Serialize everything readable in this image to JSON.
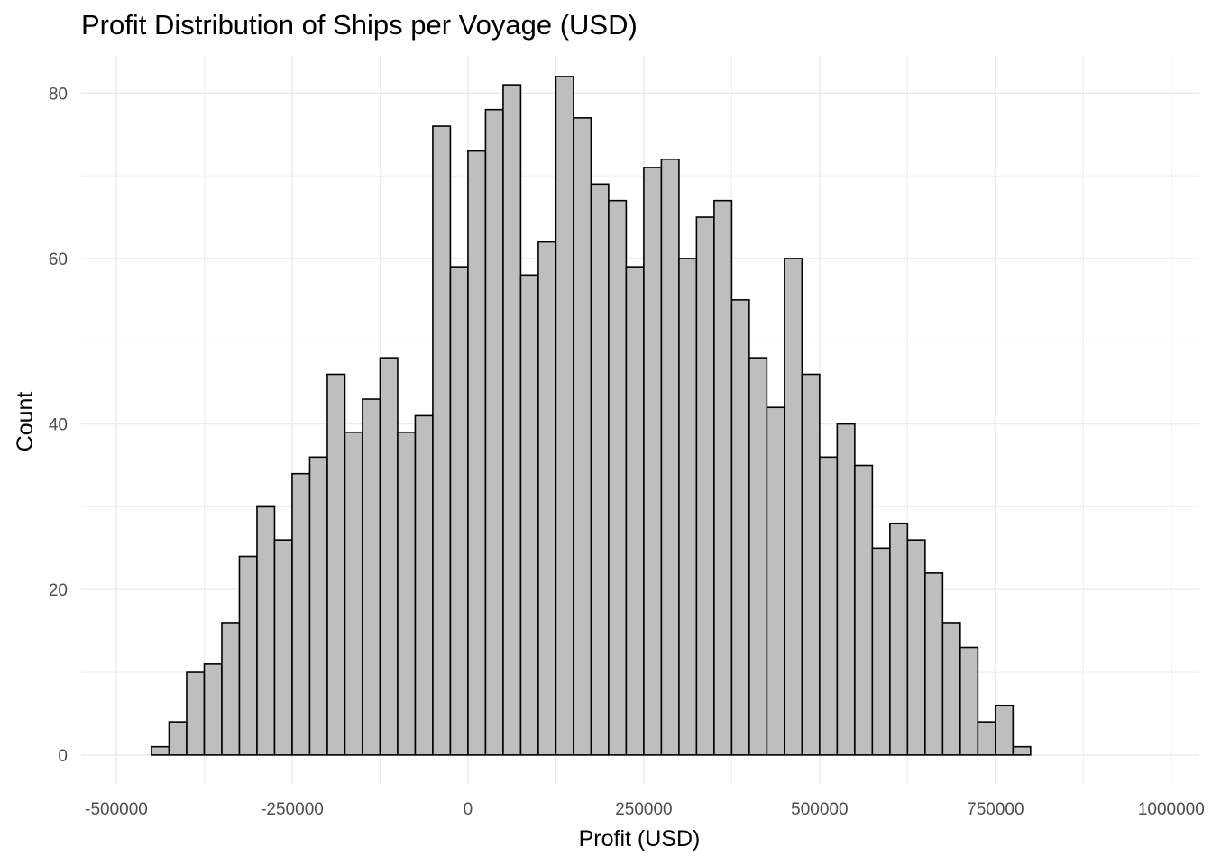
{
  "chart_data": {
    "type": "bar",
    "title": "Profit Distribution of Ships per Voyage (USD)",
    "xlabel": "Profit (USD)",
    "ylabel": "Count",
    "xlim": [
      -550000,
      1040000
    ],
    "ylim": [
      -3.5,
      84.5
    ],
    "grid": true,
    "bin_width": 25000,
    "first_bin_center": -437500,
    "values": [
      1,
      4,
      10,
      11,
      16,
      24,
      30,
      26,
      34,
      36,
      46,
      39,
      43,
      48,
      39,
      41,
      76,
      59,
      73,
      78,
      81,
      58,
      62,
      82,
      77,
      69,
      67,
      59,
      71,
      72,
      60,
      65,
      67,
      55,
      48,
      42,
      60,
      46,
      36,
      40,
      35,
      25,
      28,
      26,
      22,
      16,
      13,
      4,
      6,
      1
    ],
    "x_ticks": [
      -500000,
      -250000,
      0,
      250000,
      500000,
      750000,
      1000000
    ],
    "x_tick_labels": [
      "-500000",
      "-250000",
      "0",
      "250000",
      "500000",
      "750000",
      "1000000"
    ],
    "y_ticks": [
      0,
      20,
      40,
      60,
      80
    ],
    "y_tick_labels": [
      "0",
      "20",
      "40",
      "60",
      "80"
    ],
    "colors": {
      "bar_fill": "#bebebe",
      "bar_stroke": "#000000",
      "grid": "#ebebeb"
    }
  }
}
